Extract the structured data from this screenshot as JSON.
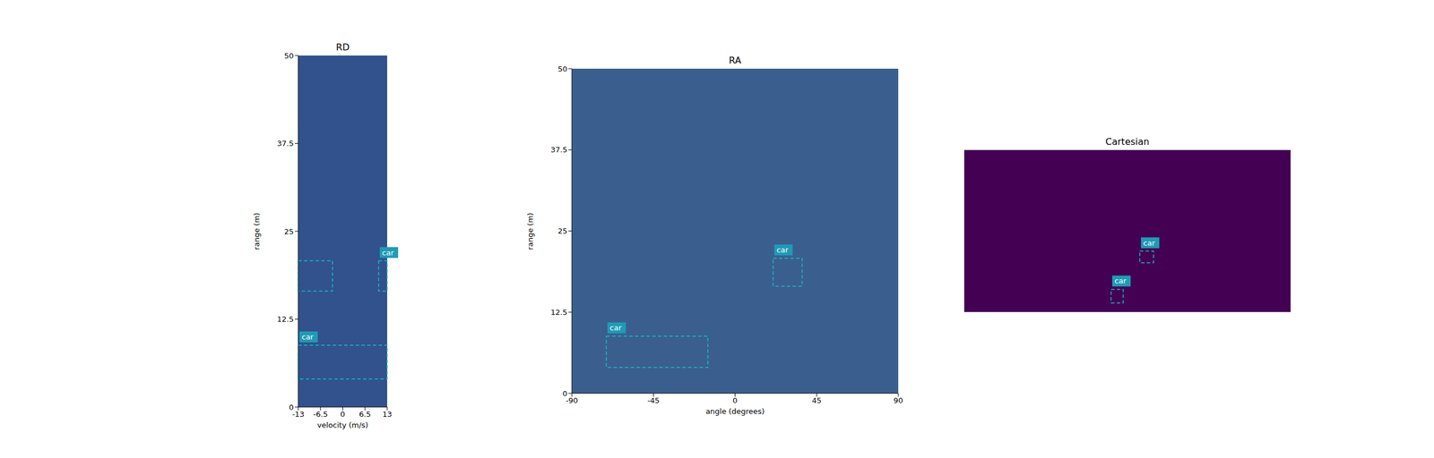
{
  "chart_data": [
    {
      "type": "heatmap",
      "title": "RD",
      "x_label": "velocity (m/s)",
      "y_label": "range (m)",
      "xlim": [
        -13,
        13
      ],
      "xticks": [
        -13,
        -6.5,
        0,
        6.5,
        13
      ],
      "ylim": [
        0,
        50
      ],
      "yticks": [
        0,
        12.5,
        25,
        37.5,
        50
      ],
      "color": "#31528c",
      "boxes": [
        {
          "x": [
            -13,
            -3
          ],
          "y": [
            16.5,
            20.8
          ]
        },
        {
          "label": "car",
          "x": [
            10.5,
            13
          ],
          "y": [
            16.5,
            20.8
          ]
        },
        {
          "label": "car",
          "x": [
            -13,
            13
          ],
          "y": [
            4,
            8.8
          ]
        }
      ]
    },
    {
      "type": "heatmap",
      "title": "RA",
      "x_label": "angle (degrees)",
      "y_label": "range (m)",
      "xlim": [
        -90,
        90
      ],
      "xticks": [
        -90,
        -45,
        0,
        45,
        90
      ],
      "ylim": [
        0,
        50
      ],
      "yticks": [
        0,
        12.5,
        25,
        37.5,
        50
      ],
      "color": "#3a5f8e",
      "boxes": [
        {
          "label": "car",
          "x": [
            -71,
            -15
          ],
          "y": [
            4,
            8.8
          ]
        },
        {
          "label": "car",
          "x": [
            21,
            37
          ],
          "y": [
            16.5,
            20.8
          ]
        }
      ]
    },
    {
      "type": "heatmap",
      "title": "Cartesian",
      "tick_labels": false,
      "xlim": [
        -50,
        50
      ],
      "ylim": [
        0,
        50
      ],
      "color": "#440154",
      "boxes": [
        {
          "label": "car",
          "x": [
            -5,
            -1.3
          ],
          "y": [
            2.8,
            7
          ]
        },
        {
          "label": "car",
          "x": [
            3.8,
            8
          ],
          "y": [
            15.2,
            18.8
          ]
        }
      ]
    }
  ]
}
